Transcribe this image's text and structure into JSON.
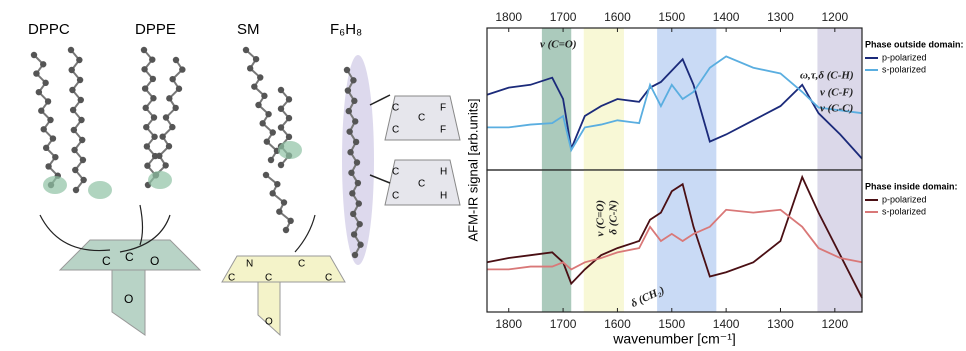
{
  "diagram": {
    "molecules": [
      "DPPC",
      "DPPE",
      "SM",
      "F₆H₈"
    ],
    "ester_group": [
      "C",
      "C",
      "O",
      "O"
    ],
    "amide_group": [
      "N",
      "C",
      "C",
      "C",
      "C",
      "O"
    ],
    "cf_group": [
      "C",
      "C",
      "C",
      "F",
      "F"
    ],
    "ch_group": [
      "C",
      "C",
      "C",
      "H",
      "H"
    ]
  },
  "chart_data": [
    {
      "type": "line",
      "ylabel": "AFM-IR signal [arb.units]",
      "xaxis": "top",
      "legend_title": "Phase outside domain:",
      "x": [
        1840,
        1800,
        1760,
        1720,
        1700,
        1685,
        1660,
        1630,
        1600,
        1560,
        1540,
        1520,
        1500,
        1480,
        1460,
        1430,
        1400,
        1350,
        1300,
        1260,
        1230,
        1190,
        1150
      ],
      "series": [
        {
          "name": "p-polarized",
          "color": "#1b2a7a",
          "values": [
            0.53,
            0.58,
            0.6,
            0.65,
            0.5,
            0.15,
            0.38,
            0.45,
            0.5,
            0.48,
            0.58,
            0.62,
            0.7,
            0.78,
            0.6,
            0.2,
            0.25,
            0.35,
            0.45,
            0.6,
            0.4,
            0.25,
            0.08
          ]
        },
        {
          "name": "s-polarized",
          "color": "#5aaee0",
          "values": [
            0.3,
            0.3,
            0.32,
            0.33,
            0.38,
            0.14,
            0.3,
            0.32,
            0.35,
            0.33,
            0.6,
            0.45,
            0.6,
            0.5,
            0.55,
            0.72,
            0.8,
            0.72,
            0.68,
            0.55,
            0.44,
            0.42,
            0.4
          ]
        }
      ],
      "bands": [
        {
          "from": 1739,
          "to": 1685,
          "color": "#8fb8a6"
        },
        {
          "from": 1662,
          "to": 1588,
          "color": "#f6f5c8"
        },
        {
          "from": 1527,
          "to": 1418,
          "color": "#b7cdf2"
        },
        {
          "from": 1232,
          "to": 1150,
          "color": "#cfcbe2"
        }
      ],
      "annotations": [
        "ν (C=O)",
        "ω,τ,δ (C-H)",
        "ν (C-F)",
        "ν (C-C)"
      ],
      "xlim": [
        1840,
        1150
      ],
      "ylim": [
        0,
        1
      ],
      "xticks": [
        1800,
        1700,
        1600,
        1500,
        1400,
        1300,
        1200
      ]
    },
    {
      "type": "line",
      "xlabel": "wavenumber [cm⁻¹]",
      "xaxis": "bottom",
      "legend_title": "Phase inside domain:",
      "x": [
        1840,
        1800,
        1760,
        1720,
        1700,
        1685,
        1660,
        1630,
        1600,
        1560,
        1540,
        1520,
        1500,
        1480,
        1460,
        1430,
        1400,
        1350,
        1300,
        1260,
        1230,
        1190,
        1150
      ],
      "series": [
        {
          "name": "p-polarized",
          "color": "#4a0f14",
          "values": [
            0.35,
            0.38,
            0.4,
            0.42,
            0.35,
            0.2,
            0.3,
            0.4,
            0.45,
            0.5,
            0.65,
            0.7,
            0.85,
            0.9,
            0.6,
            0.25,
            0.28,
            0.35,
            0.5,
            0.95,
            0.7,
            0.4,
            0.1
          ]
        },
        {
          "name": "s-polarized",
          "color": "#d97878",
          "values": [
            0.3,
            0.3,
            0.32,
            0.32,
            0.35,
            0.3,
            0.35,
            0.38,
            0.42,
            0.45,
            0.6,
            0.5,
            0.55,
            0.5,
            0.55,
            0.6,
            0.72,
            0.7,
            0.72,
            0.6,
            0.45,
            0.38,
            0.35
          ]
        }
      ],
      "bands": [
        {
          "from": 1739,
          "to": 1685,
          "color": "#8fb8a6"
        },
        {
          "from": 1662,
          "to": 1588,
          "color": "#f6f5c8"
        },
        {
          "from": 1527,
          "to": 1418,
          "color": "#b7cdf2"
        },
        {
          "from": 1232,
          "to": 1150,
          "color": "#cfcbe2"
        }
      ],
      "annotations": [
        "ν (C=O)",
        "δ (C-N)",
        "δ (CH₂)"
      ],
      "xlim": [
        1840,
        1150
      ],
      "ylim": [
        0,
        1
      ],
      "xticks": [
        1800,
        1700,
        1600,
        1500,
        1400,
        1300,
        1200
      ]
    }
  ]
}
